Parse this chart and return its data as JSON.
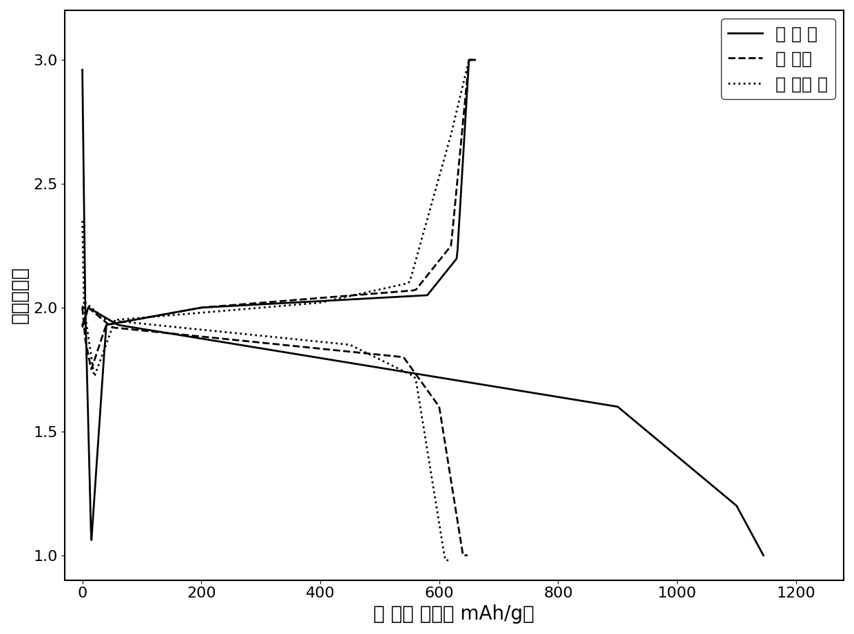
{
  "title": "",
  "xlabel": "放 电比 容量（ mAh/g）",
  "ylabel": "电压（Ｖ）",
  "xlim": [
    -30,
    1280
  ],
  "ylim": [
    0.9,
    3.2
  ],
  "xticks": [
    0,
    200,
    400,
    600,
    800,
    1000,
    1200
  ],
  "yticks": [
    1.0,
    1.5,
    2.0,
    2.5,
    3.0
  ],
  "legend_labels": [
    "第 一 周",
    "第 二周",
    "第 五十 周"
  ],
  "legend_styles": [
    "solid",
    "dashed",
    "dotted"
  ],
  "background_color": "#ffffff",
  "line_color": "#000000",
  "linewidth": 2.0,
  "font_size_label": 20,
  "font_size_tick": 16,
  "font_size_legend": 18
}
